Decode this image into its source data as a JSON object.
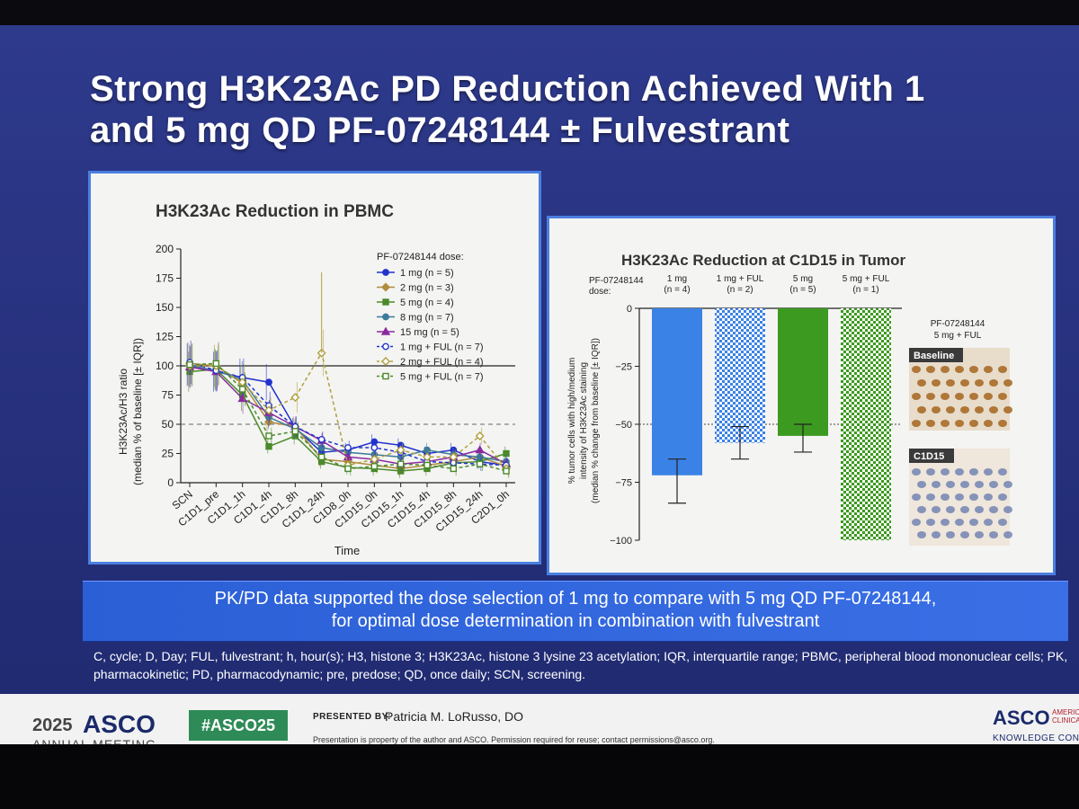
{
  "slide": {
    "title": "Strong H3K23Ac PD Reduction Achieved With 1 and 5 mg QD PF-07248144 ± Fulvestrant",
    "banner_line1": "PK/PD data supported the dose selection of 1 mg to compare with 5 mg QD PF-07248144,",
    "banner_line2": "for optimal dose determination in combination with fulvestrant",
    "footnote": "C, cycle; D, Day; FUL, fulvestrant; h, hour(s); H3, histone 3; H3K23Ac, histone 3 lysine 23 acetylation; IQR, interquartile range; PBMC, peripheral blood mononuclear cells; PK, pharmacokinetic; PD, pharmacodynamic; pre, predose; QD, once daily; SCN, screening."
  },
  "footer": {
    "year": "2025",
    "asco": "ASCO",
    "meeting": "ANNUAL MEETING",
    "hashtag": "#ASCO25",
    "presented_by": "PRESENTED BY:",
    "presenter": "Patricia M. LoRusso, DO",
    "rights": "Presentation is property of the author and ASCO. Permission required for reuse; contact permissions@asco.org.",
    "logo": "ASCO",
    "logo_small": "AMERICAN CLINICAL",
    "tagline": "KNOWLEDGE CONQUERS"
  },
  "chart_data": [
    {
      "type": "line",
      "title": "H3K23Ac Reduction in PBMC",
      "xlabel": "Time",
      "ylabel_line1": "H3K23Ac/H3 ratio",
      "ylabel_line2": "(median % of baseline [± IQR])",
      "legend_title": "PF-07248144 dose:",
      "legend_position": "top-right",
      "categories": [
        "SCN",
        "C1D1_pre",
        "C1D1_1h",
        "C1D1_4h",
        "C1D1_8h",
        "C1D1_24h",
        "C1D8_0h",
        "C1D15_0h",
        "C1D15_1h",
        "C1D15_4h",
        "C1D15_8h",
        "C1D15_24h",
        "C2D1_0h"
      ],
      "yticks": [
        0,
        25,
        50,
        75,
        100,
        125,
        150,
        175,
        200
      ],
      "ylim": [
        0,
        200
      ],
      "reference_lines": [
        100,
        50
      ],
      "series": [
        {
          "name": "1 mg (n = 5)",
          "color": "#2233cc",
          "marker": "circle",
          "dashed": false,
          "open": false,
          "values": [
            101,
            95,
            90,
            86,
            47,
            26,
            28,
            35,
            32,
            25,
            28,
            18,
            15
          ]
        },
        {
          "name": "2 mg (n = 3)",
          "color": "#b08c3c",
          "marker": "diamond",
          "dashed": false,
          "open": false,
          "values": [
            102,
            100,
            85,
            52,
            48,
            20,
            18,
            15,
            12,
            15,
            18,
            22,
            14
          ]
        },
        {
          "name": "5 mg (n = 4)",
          "color": "#4a8a2a",
          "marker": "square",
          "dashed": false,
          "open": false,
          "values": [
            95,
            97,
            75,
            31,
            40,
            18,
            13,
            12,
            10,
            12,
            17,
            18,
            25
          ]
        },
        {
          "name": "8 mg (n = 7)",
          "color": "#3d7a9a",
          "marker": "circle",
          "dashed": false,
          "open": false,
          "values": [
            100,
            96,
            88,
            56,
            46,
            30,
            26,
            24,
            22,
            28,
            24,
            22,
            18
          ]
        },
        {
          "name": "15 mg (n = 5)",
          "color": "#8a2aa0",
          "marker": "triangle",
          "dashed": false,
          "open": false,
          "values": [
            99,
            95,
            72,
            60,
            48,
            36,
            22,
            20,
            16,
            18,
            22,
            28,
            16
          ]
        },
        {
          "name": "1 mg + FUL (n = 7)",
          "color": "#2233cc",
          "marker": "circle",
          "dashed": true,
          "open": true,
          "values": [
            103,
            96,
            90,
            66,
            48,
            37,
            30,
            30,
            26,
            18,
            17,
            16,
            15
          ]
        },
        {
          "name": "2 mg + FUL (n = 4)",
          "color": "#b0a040",
          "marker": "diamond",
          "dashed": true,
          "open": true,
          "values": [
            100,
            100,
            86,
            62,
            73,
            111,
            15,
            20,
            28,
            22,
            22,
            40,
            12
          ]
        },
        {
          "name": "5 mg + FUL (n = 7)",
          "color": "#4a8a2a",
          "marker": "square",
          "dashed": true,
          "open": true,
          "values": [
            101,
            102,
            80,
            40,
            44,
            22,
            12,
            14,
            16,
            15,
            12,
            16,
            10
          ]
        }
      ]
    },
    {
      "type": "bar",
      "title": "H3K23Ac Reduction at C1D15 in Tumor",
      "ylabel_line1": "% tumor cells with high/medium",
      "ylabel_line2": "intensity of H3K23Ac staining",
      "ylabel_line3": "(median % change from baseline [± IQR])",
      "dose_label_line1": "PF-07248144",
      "dose_label_line2": "dose:",
      "yticks": [
        0,
        -25,
        -50,
        -75,
        -100
      ],
      "ylim": [
        -100,
        0
      ],
      "reference_line": -50,
      "bars": [
        {
          "label_line1": "1 mg",
          "label_line2": "(n = 4)",
          "value": -72,
          "err_low": -84,
          "err_high": -65,
          "color": "#3b82e6",
          "pattern": "solid"
        },
        {
          "label_line1": "1 mg + FUL",
          "label_line2": "(n = 2)",
          "value": -58,
          "err_low": -65,
          "err_high": -51,
          "color": "#3b82e6",
          "pattern": "checker"
        },
        {
          "label_line1": "5 mg",
          "label_line2": "(n = 5)",
          "value": -55,
          "err_low": -62,
          "err_high": -50,
          "color": "#3c9a20",
          "pattern": "solid"
        },
        {
          "label_line1": "5 mg + FUL",
          "label_line2": "(n = 1)",
          "value": -100,
          "err_low": null,
          "err_high": null,
          "color": "#3c9a20",
          "pattern": "checker"
        }
      ],
      "image_caption_line1": "PF-07248144",
      "image_caption_line2": "5 mg + FUL",
      "image_labels": [
        "Baseline",
        "C1D15"
      ]
    }
  ]
}
